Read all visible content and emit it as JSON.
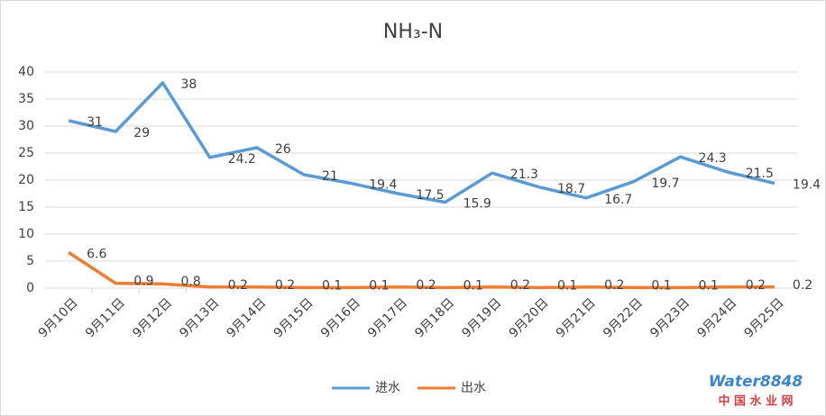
{
  "chart_data": {
    "type": "line",
    "title": "NH₃-N",
    "categories": [
      "9月10日",
      "9月11日",
      "9月12日",
      "9月13日",
      "9月14日",
      "9月15日",
      "9月16日",
      "9月17日",
      "9月18日",
      "9月19日",
      "9月20日",
      "9月21日",
      "9月22日",
      "9月23日",
      "9月24日",
      "9月25日"
    ],
    "series": [
      {
        "name": "进水",
        "color": "#5b9bd5",
        "values": [
          31,
          29,
          38,
          24.2,
          26,
          21,
          19.4,
          17.5,
          15.9,
          21.3,
          18.7,
          16.7,
          19.7,
          24.3,
          21.5,
          19.4
        ]
      },
      {
        "name": "出水",
        "color": "#ed7d31",
        "values": [
          6.6,
          0.9,
          0.8,
          0.2,
          0.2,
          0.1,
          0.1,
          0.2,
          0.1,
          0.2,
          0.1,
          0.2,
          0.1,
          0.1,
          0.2,
          0.2
        ]
      }
    ],
    "ylim": [
      0,
      40
    ],
    "yticks": [
      0,
      5,
      10,
      15,
      20,
      25,
      30,
      35,
      40
    ],
    "grid": true,
    "legend": "bottom"
  },
  "watermark": {
    "brand": "Water8848",
    "site": "中 国 水 业 网"
  }
}
